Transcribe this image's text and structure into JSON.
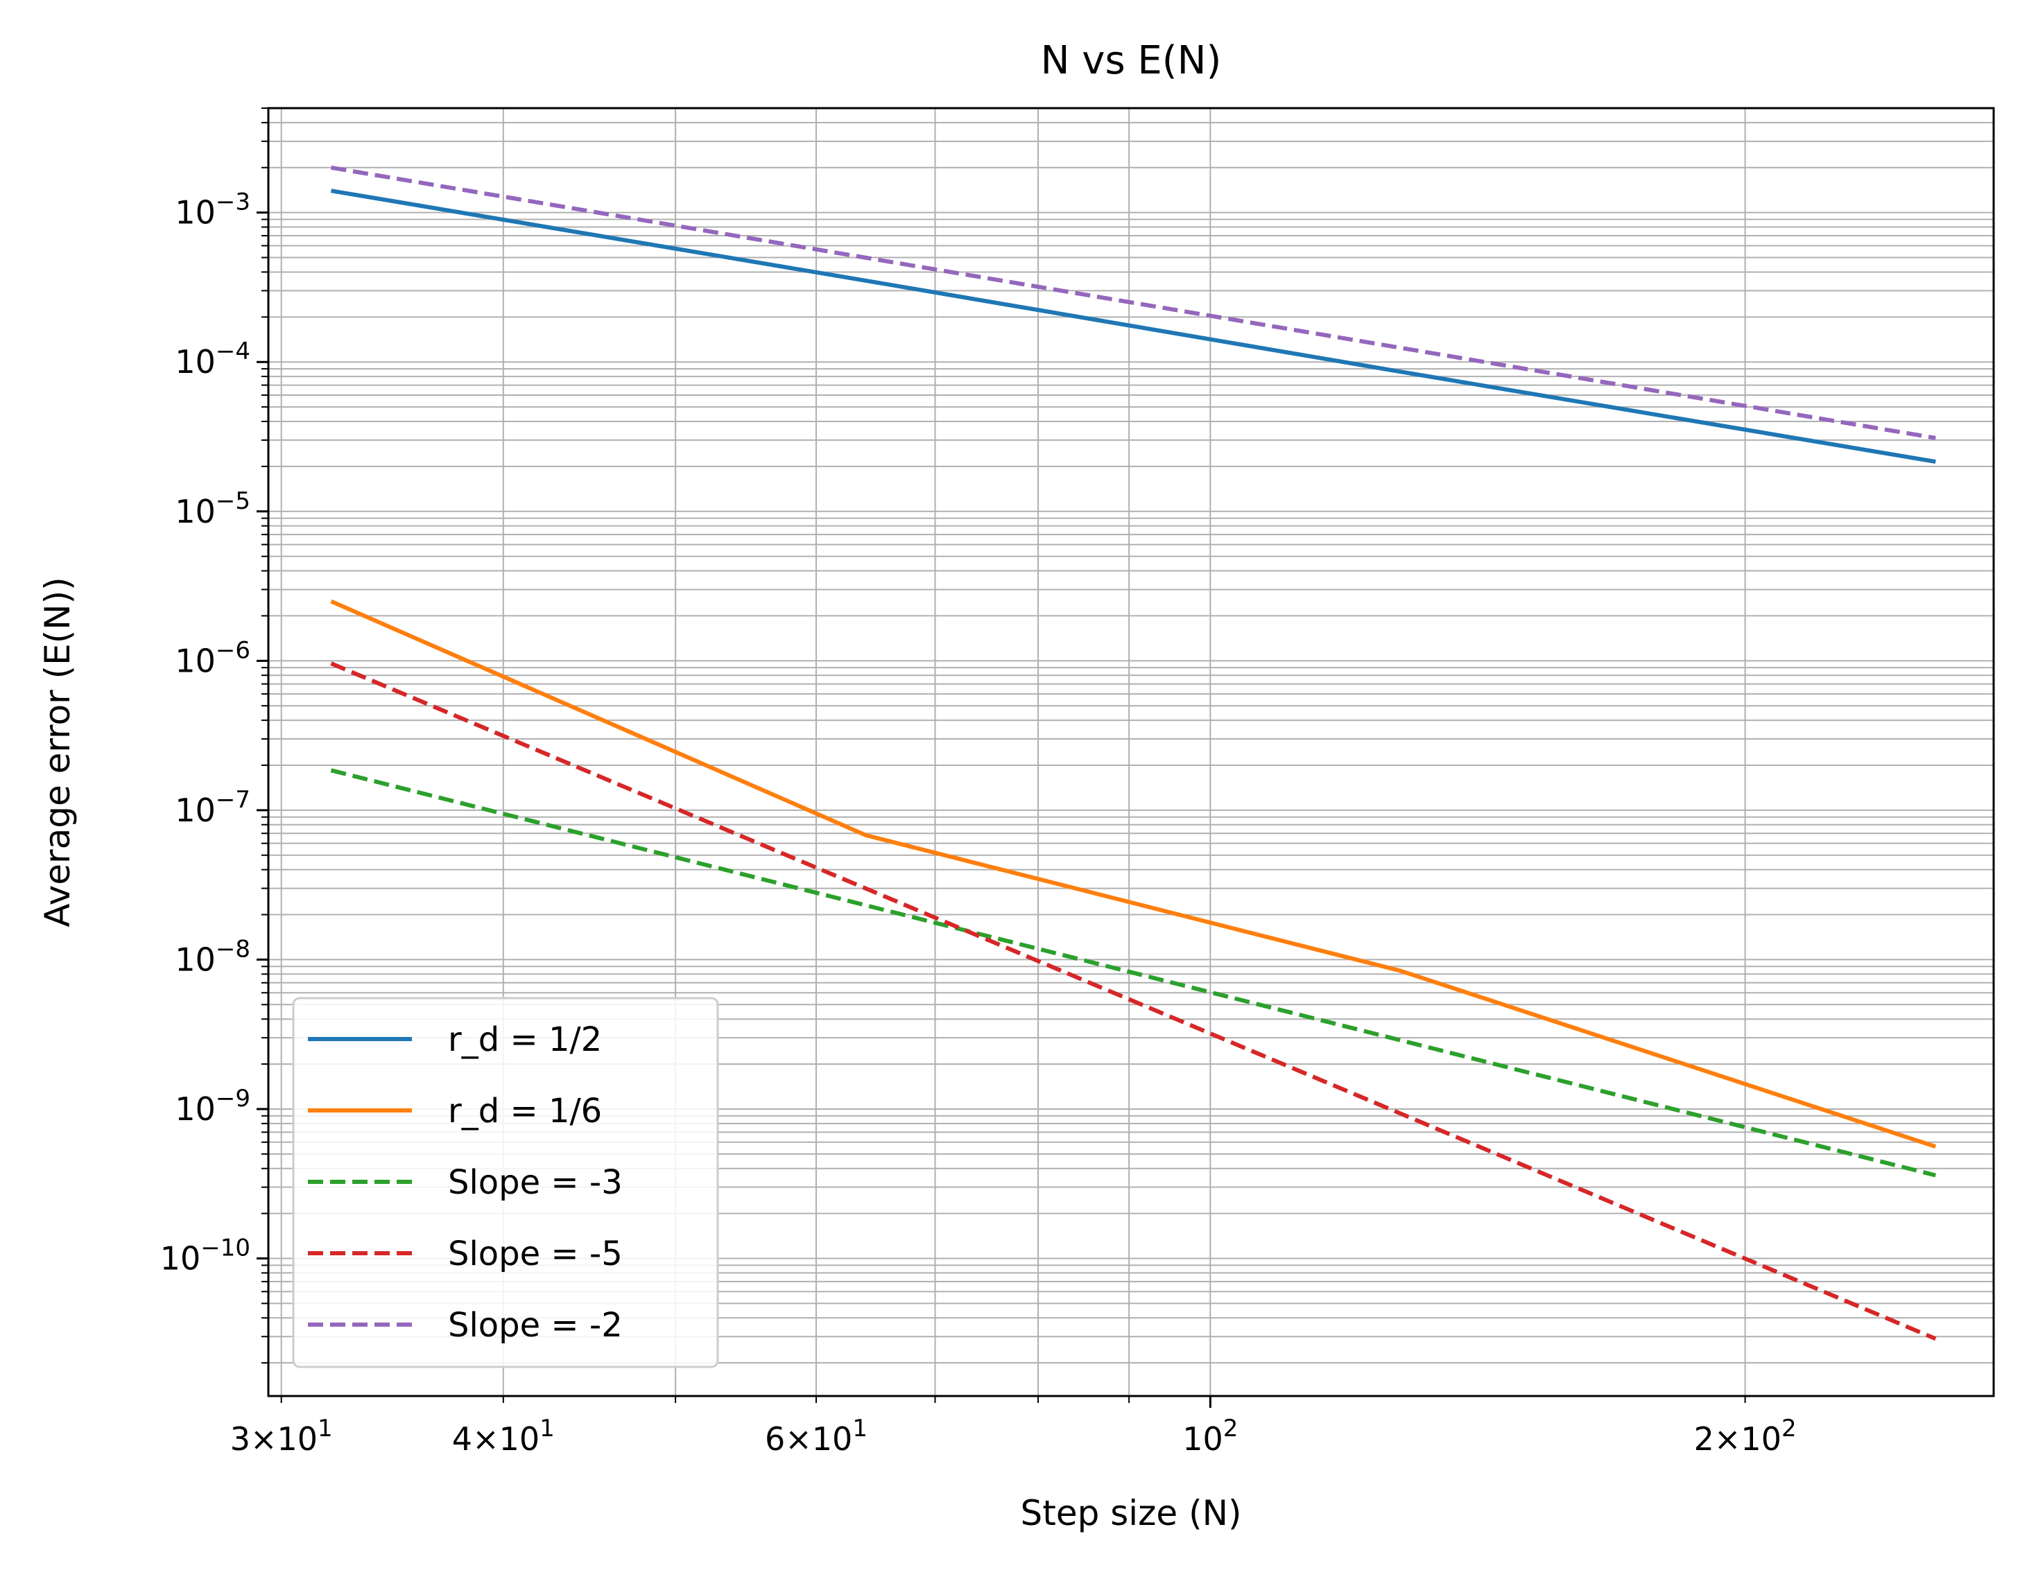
{
  "chart_data": {
    "type": "line",
    "title": "N vs E(N)",
    "xlabel": "Step size (N)",
    "ylabel": "Average error (E(N))",
    "xscale": "log",
    "yscale": "log",
    "xlim": [
      29.5,
      276
    ],
    "ylim": [
      1.2e-11,
      0.005
    ],
    "grid": "major and minor, both axes",
    "legend_position": "lower-left",
    "x_ticks": [
      {
        "value": 30,
        "base": "3×10",
        "exp": "1"
      },
      {
        "value": 40,
        "base": "4×10",
        "exp": "1"
      },
      {
        "value": 60,
        "base": "6×10",
        "exp": "1"
      },
      {
        "value": 100,
        "base": "10",
        "exp": "2"
      },
      {
        "value": 200,
        "base": "2×10",
        "exp": "2"
      }
    ],
    "y_ticks": [
      {
        "value": 0.001,
        "base": "10",
        "exp": "−3"
      },
      {
        "value": 0.0001,
        "base": "10",
        "exp": "−4"
      },
      {
        "value": 1e-05,
        "base": "10",
        "exp": "−5"
      },
      {
        "value": 1e-06,
        "base": "10",
        "exp": "−6"
      },
      {
        "value": 1e-07,
        "base": "10",
        "exp": "−7"
      },
      {
        "value": 1e-08,
        "base": "10",
        "exp": "−8"
      },
      {
        "value": 1e-09,
        "base": "10",
        "exp": "−9"
      },
      {
        "value": 1e-10,
        "base": "10",
        "exp": "−10"
      }
    ],
    "series": [
      {
        "name": "r_d = 1/2",
        "color": "#1f77b4",
        "dash": "solid",
        "x": [
          32,
          64,
          128,
          256
        ],
        "y": [
          0.0014,
          0.00035,
          8.6e-05,
          2.15e-05
        ]
      },
      {
        "name": "r_d = 1/6",
        "color": "#ff7f0e",
        "dash": "solid",
        "x": [
          32,
          64,
          128,
          256
        ],
        "y": [
          2.5e-06,
          6.8e-08,
          8.4e-09,
          5.6e-10
        ]
      },
      {
        "name": "Slope = -3",
        "color": "#2ca02c",
        "dash": "dashed",
        "x": [
          32,
          256
        ],
        "y": [
          1.85e-07,
          3.6e-10
        ]
      },
      {
        "name": "Slope = -5",
        "color": "#d62728",
        "dash": "dashed",
        "x": [
          32,
          256
        ],
        "y": [
          9.6e-07,
          2.9e-11
        ]
      },
      {
        "name": "Slope = -2",
        "color": "#9467bd",
        "dash": "dashed",
        "x": [
          32,
          256
        ],
        "y": [
          0.002,
          3.1e-05
        ]
      }
    ]
  }
}
